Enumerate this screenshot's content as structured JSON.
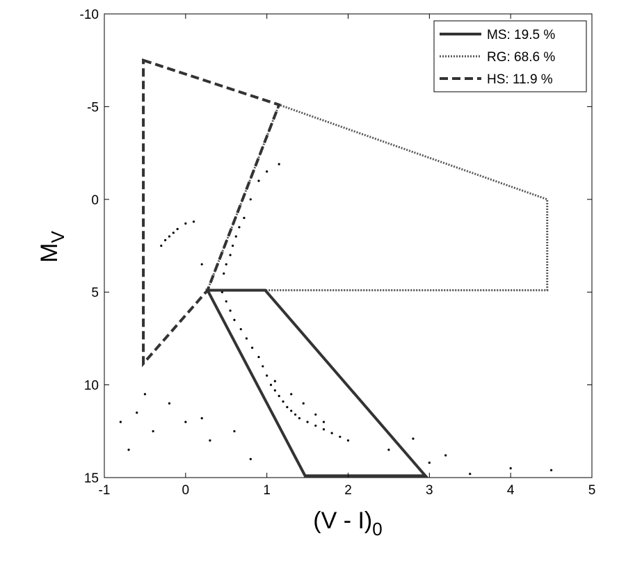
{
  "chart_data": {
    "type": "scatter",
    "xlim": [
      -1,
      5
    ],
    "ylim": [
      -10,
      15
    ],
    "y_reversed": true,
    "xticks": [
      -1,
      0,
      1,
      2,
      3,
      4,
      5
    ],
    "yticks": [
      -10,
      -5,
      0,
      5,
      10,
      15
    ],
    "xlabel": {
      "main": "(V - I)",
      "subscript": "0"
    },
    "ylabel": {
      "main": "M",
      "subscript": "V"
    },
    "legend": "upper right",
    "regions": [
      {
        "name": "MS: 19.5 %",
        "style": "solid",
        "color": "#333333",
        "x": [
          0.27,
          0.98,
          2.95,
          1.47
        ],
        "y": [
          4.9,
          4.9,
          14.9,
          14.9
        ]
      },
      {
        "name": "RG: 68.6 %",
        "style": "dotted",
        "color": "#555555",
        "x": [
          0.27,
          1.15,
          4.45,
          4.45,
          0.98
        ],
        "y": [
          4.9,
          -5.1,
          0,
          4.9,
          4.9
        ]
      },
      {
        "name": "HS: 11.9 %",
        "style": "dashed",
        "color": "#333333",
        "x": [
          -0.52,
          1.15,
          0.27,
          -0.52
        ],
        "y": [
          -7.5,
          -5.1,
          4.9,
          8.85
        ]
      }
    ],
    "stars": {
      "color": "#000000",
      "x": [
        0.47,
        0.5,
        0.55,
        0.58,
        0.62,
        0.66,
        0.72,
        0.8,
        0.9,
        1.0,
        1.15,
        0.45,
        0.5,
        0.55,
        0.6,
        0.68,
        0.75,
        0.82,
        0.9,
        0.95,
        1.0,
        1.05,
        1.1,
        1.15,
        1.2,
        1.25,
        1.3,
        1.35,
        1.4,
        1.5,
        1.6,
        1.7,
        1.8,
        1.9,
        2.0,
        1.1,
        1.3,
        1.45,
        1.6,
        1.7,
        -0.3,
        -0.25,
        -0.2,
        -0.15,
        -0.1,
        0.0,
        0.1,
        0.2,
        -0.8,
        -0.6,
        -0.4,
        -0.2,
        0.0,
        0.3,
        0.6,
        -0.7,
        -0.5,
        0.2,
        0.8,
        2.5,
        3.0,
        3.5,
        4.0,
        4.5,
        3.2,
        2.8
      ],
      "y": [
        4.0,
        3.5,
        3.0,
        2.5,
        2.0,
        1.5,
        1.0,
        0.0,
        -1,
        -1.5,
        -1.9,
        5.0,
        5.5,
        6.0,
        6.5,
        7.0,
        7.5,
        8.0,
        8.5,
        9.0,
        9.5,
        10,
        10.3,
        10.6,
        10.9,
        11.2,
        11.4,
        11.6,
        11.8,
        12.0,
        12.2,
        12.4,
        12.6,
        12.8,
        13.0,
        9.8,
        10.5,
        11.0,
        11.6,
        12.0,
        2.5,
        2.2,
        2.0,
        1.8,
        1.6,
        1.3,
        1.2,
        3.5,
        12,
        11.5,
        12.5,
        11,
        12,
        13,
        12.5,
        13.5,
        10.5,
        11.8,
        14,
        13.5,
        14.2,
        14.8,
        14.5,
        14.6,
        13.8,
        12.9
      ]
    }
  }
}
